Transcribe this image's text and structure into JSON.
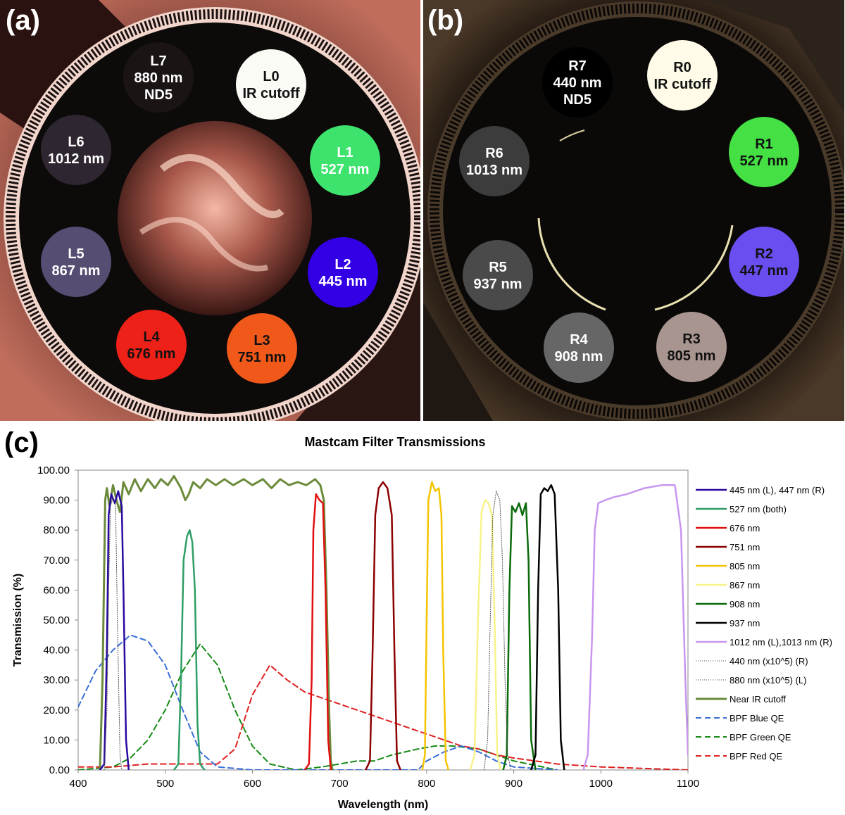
{
  "panel_a": {
    "label": "(a)",
    "filters": [
      {
        "id": "L0",
        "line1": "L0",
        "line2": "IR cutoff",
        "line3": "",
        "color": "#fbfbf6",
        "text": "#111111"
      },
      {
        "id": "L1",
        "line1": "L1",
        "line2": "527 nm",
        "line3": "",
        "color": "#3ee36e",
        "text": "#ffffff"
      },
      {
        "id": "L2",
        "line1": "L2",
        "line2": "445 nm",
        "line3": "",
        "color": "#3300e6",
        "text": "#ffffff"
      },
      {
        "id": "L3",
        "line1": "L3",
        "line2": "751 nm",
        "line3": "",
        "color": "#f0591a",
        "text": "#111111"
      },
      {
        "id": "L4",
        "line1": "L4",
        "line2": "676 nm",
        "line3": "",
        "color": "#ee2118",
        "text": "#111111"
      },
      {
        "id": "L5",
        "line1": "L5",
        "line2": "867 nm",
        "line3": "",
        "color": "#564d73",
        "text": "#ffffff"
      },
      {
        "id": "L6",
        "line1": "L6",
        "line2": "1012 nm",
        "line3": "",
        "color": "#2e2630",
        "text": "#ffffff"
      },
      {
        "id": "L7",
        "line1": "L7",
        "line2": "880 nm",
        "line3": "ND5",
        "color": "#1b1414",
        "text": "#ffffff"
      }
    ]
  },
  "panel_b": {
    "label": "(b)",
    "filters": [
      {
        "id": "R0",
        "line1": "R0",
        "line2": "IR cutoff",
        "line3": "",
        "color": "#fffbe8",
        "text": "#111111"
      },
      {
        "id": "R1",
        "line1": "R1",
        "line2": "527 nm",
        "line3": "",
        "color": "#44e044",
        "text": "#111111"
      },
      {
        "id": "R2",
        "line1": "R2",
        "line2": "447 nm",
        "line3": "",
        "color": "#6a4ef0",
        "text": "#111111"
      },
      {
        "id": "R3",
        "line1": "R3",
        "line2": "805 nm",
        "line3": "",
        "color": "#a99590",
        "text": "#111111"
      },
      {
        "id": "R4",
        "line1": "R4",
        "line2": "908 nm",
        "line3": "",
        "color": "#666666",
        "text": "#ffffff"
      },
      {
        "id": "R5",
        "line1": "R5",
        "line2": "937 nm",
        "line3": "",
        "color": "#4a4a4a",
        "text": "#ffffff"
      },
      {
        "id": "R6",
        "line1": "R6",
        "line2": "1013 nm",
        "line3": "",
        "color": "#3c3c3c",
        "text": "#ffffff"
      },
      {
        "id": "R7",
        "line1": "R7",
        "line2": "440 nm",
        "line3": "ND5",
        "color": "#000000",
        "text": "#ffffff"
      }
    ]
  },
  "panel_c_label": "(c)",
  "chart_data": {
    "type": "line",
    "title": "Mastcam Filter Transmissions",
    "xlabel": "Wavelength (nm)",
    "ylabel": "Transmission (%)",
    "xlim": [
      400,
      1100
    ],
    "ylim": [
      0,
      100
    ],
    "xticks": [
      "400",
      "500",
      "600",
      "700",
      "800",
      "900",
      "1000",
      "1100"
    ],
    "yticks": [
      "0.00",
      "10.00",
      "20.00",
      "30.00",
      "40.00",
      "50.00",
      "60.00",
      "70.00",
      "80.00",
      "90.00",
      "100.00"
    ],
    "series": [
      {
        "name": "445 nm (L), 447 nm (R)",
        "color": "#2a0aa0",
        "dash": "",
        "width": 2.5,
        "points": [
          [
            425,
            0
          ],
          [
            430,
            2
          ],
          [
            433,
            40
          ],
          [
            435,
            85
          ],
          [
            438,
            92
          ],
          [
            442,
            89
          ],
          [
            446,
            93
          ],
          [
            450,
            88
          ],
          [
            452,
            60
          ],
          [
            455,
            10
          ],
          [
            458,
            0
          ]
        ]
      },
      {
        "name": "527 nm (both)",
        "color": "#2f9e66",
        "dash": "",
        "width": 2.5,
        "points": [
          [
            510,
            0
          ],
          [
            515,
            2
          ],
          [
            518,
            30
          ],
          [
            521,
            70
          ],
          [
            525,
            78
          ],
          [
            528,
            80
          ],
          [
            531,
            76
          ],
          [
            534,
            60
          ],
          [
            537,
            15
          ],
          [
            540,
            2
          ],
          [
            545,
            0
          ]
        ]
      },
      {
        "name": "676 nm",
        "color": "#e01010",
        "dash": "",
        "width": 2.5,
        "points": [
          [
            660,
            0
          ],
          [
            665,
            2
          ],
          [
            668,
            30
          ],
          [
            670,
            80
          ],
          [
            673,
            92
          ],
          [
            677,
            90
          ],
          [
            681,
            89
          ],
          [
            684,
            60
          ],
          [
            687,
            10
          ],
          [
            690,
            0
          ]
        ]
      },
      {
        "name": "751 nm",
        "color": "#8b0000",
        "dash": "",
        "width": 2.5,
        "points": [
          [
            730,
            0
          ],
          [
            735,
            3
          ],
          [
            738,
            40
          ],
          [
            741,
            85
          ],
          [
            745,
            94
          ],
          [
            750,
            96
          ],
          [
            755,
            94
          ],
          [
            760,
            85
          ],
          [
            763,
            40
          ],
          [
            766,
            3
          ],
          [
            770,
            0
          ]
        ]
      },
      {
        "name": "805 nm",
        "color": "#f5c400",
        "dash": "",
        "width": 2.5,
        "points": [
          [
            795,
            0
          ],
          [
            798,
            5
          ],
          [
            800,
            50
          ],
          [
            802,
            90
          ],
          [
            806,
            96
          ],
          [
            810,
            93
          ],
          [
            814,
            94
          ],
          [
            817,
            85
          ],
          [
            819,
            40
          ],
          [
            822,
            3
          ],
          [
            825,
            0
          ]
        ]
      },
      {
        "name": "867 nm",
        "color": "#f7f38a",
        "dash": "",
        "width": 2.5,
        "points": [
          [
            850,
            0
          ],
          [
            855,
            5
          ],
          [
            859,
            50
          ],
          [
            863,
            86
          ],
          [
            867,
            90
          ],
          [
            871,
            89
          ],
          [
            875,
            85
          ],
          [
            878,
            50
          ],
          [
            881,
            5
          ],
          [
            885,
            0
          ]
        ]
      },
      {
        "name": "908 nm",
        "color": "#0b6b0b",
        "dash": "",
        "width": 2.5,
        "points": [
          [
            888,
            0
          ],
          [
            892,
            5
          ],
          [
            895,
            60
          ],
          [
            898,
            88
          ],
          [
            902,
            86
          ],
          [
            906,
            89
          ],
          [
            910,
            85
          ],
          [
            914,
            89
          ],
          [
            917,
            70
          ],
          [
            920,
            10
          ],
          [
            925,
            0
          ]
        ]
      },
      {
        "name": "937 nm",
        "color": "#000000",
        "dash": "",
        "width": 2.5,
        "points": [
          [
            920,
            0
          ],
          [
            925,
            5
          ],
          [
            928,
            60
          ],
          [
            931,
            92
          ],
          [
            935,
            94
          ],
          [
            939,
            93
          ],
          [
            943,
            95
          ],
          [
            947,
            92
          ],
          [
            951,
            60
          ],
          [
            954,
            10
          ],
          [
            958,
            0
          ]
        ]
      },
      {
        "name": "1012 nm (L),1013 nm (R)",
        "color": "#c896f0",
        "dash": "",
        "width": 2.5,
        "points": [
          [
            980,
            0
          ],
          [
            985,
            5
          ],
          [
            990,
            45
          ],
          [
            993,
            80
          ],
          [
            997,
            89
          ],
          [
            1005,
            90
          ],
          [
            1015,
            91
          ],
          [
            1030,
            92
          ],
          [
            1050,
            94
          ],
          [
            1070,
            95
          ],
          [
            1085,
            95
          ],
          [
            1092,
            80
          ],
          [
            1097,
            30
          ],
          [
            1100,
            5
          ]
        ]
      },
      {
        "name": "440 nm (x10^5) (R)",
        "color": "#444444",
        "dash": "1,2",
        "width": 1,
        "points": [
          [
            430,
            0
          ],
          [
            433,
            20
          ],
          [
            435,
            60
          ],
          [
            437,
            88
          ],
          [
            440,
            91
          ],
          [
            443,
            88
          ],
          [
            445,
            50
          ],
          [
            448,
            5
          ],
          [
            450,
            0
          ]
        ]
      },
      {
        "name": "880 nm (x10^5) (L)",
        "color": "#444444",
        "dash": "1,2",
        "width": 1,
        "points": [
          [
            866,
            0
          ],
          [
            870,
            10
          ],
          [
            873,
            50
          ],
          [
            876,
            85
          ],
          [
            880,
            93
          ],
          [
            884,
            90
          ],
          [
            887,
            70
          ],
          [
            890,
            30
          ],
          [
            893,
            5
          ],
          [
            897,
            0
          ]
        ]
      },
      {
        "name": "Near IR cutoff",
        "color": "#6b8a3a",
        "dash": "",
        "width": 3,
        "points": [
          [
            425,
            0
          ],
          [
            428,
            30
          ],
          [
            431,
            90
          ],
          [
            433,
            94
          ],
          [
            436,
            88
          ],
          [
            440,
            95
          ],
          [
            444,
            90
          ],
          [
            448,
            86
          ],
          [
            452,
            96
          ],
          [
            458,
            92
          ],
          [
            465,
            97
          ],
          [
            472,
            93
          ],
          [
            480,
            97
          ],
          [
            488,
            94
          ],
          [
            495,
            97
          ],
          [
            503,
            95
          ],
          [
            510,
            98
          ],
          [
            518,
            94
          ],
          [
            523,
            90
          ],
          [
            527,
            92
          ],
          [
            532,
            96
          ],
          [
            540,
            94
          ],
          [
            548,
            97
          ],
          [
            558,
            95
          ],
          [
            568,
            97
          ],
          [
            578,
            95
          ],
          [
            590,
            97
          ],
          [
            600,
            95
          ],
          [
            612,
            97
          ],
          [
            622,
            94
          ],
          [
            632,
            97
          ],
          [
            642,
            95
          ],
          [
            652,
            96
          ],
          [
            662,
            95
          ],
          [
            672,
            97
          ],
          [
            678,
            95
          ],
          [
            682,
            90
          ],
          [
            685,
            60
          ],
          [
            688,
            20
          ],
          [
            690,
            3
          ],
          [
            692,
            0
          ]
        ]
      },
      {
        "name": "BPF Blue QE",
        "color": "#3a6fd8",
        "dash": "8,5",
        "width": 2,
        "points": [
          [
            400,
            21
          ],
          [
            420,
            33
          ],
          [
            440,
            40
          ],
          [
            460,
            45
          ],
          [
            480,
            43
          ],
          [
            500,
            35
          ],
          [
            520,
            20
          ],
          [
            540,
            6
          ],
          [
            560,
            1
          ],
          [
            600,
            0
          ],
          [
            650,
            0
          ],
          [
            700,
            0
          ],
          [
            760,
            0
          ],
          [
            790,
            0
          ],
          [
            800,
            3
          ],
          [
            820,
            6
          ],
          [
            840,
            8
          ],
          [
            860,
            6
          ],
          [
            880,
            3
          ],
          [
            900,
            1
          ],
          [
            950,
            0
          ]
        ]
      },
      {
        "name": "BPF Green QE",
        "color": "#168a16",
        "dash": "8,5",
        "width": 2,
        "points": [
          [
            400,
            0
          ],
          [
            440,
            1
          ],
          [
            460,
            4
          ],
          [
            480,
            10
          ],
          [
            500,
            20
          ],
          [
            520,
            33
          ],
          [
            540,
            42
          ],
          [
            560,
            35
          ],
          [
            580,
            20
          ],
          [
            600,
            8
          ],
          [
            620,
            2
          ],
          [
            650,
            0
          ],
          [
            680,
            1
          ],
          [
            700,
            2
          ],
          [
            720,
            3
          ],
          [
            740,
            3
          ],
          [
            760,
            5
          ],
          [
            790,
            7
          ],
          [
            810,
            8
          ],
          [
            830,
            8
          ],
          [
            860,
            7
          ],
          [
            880,
            5
          ],
          [
            900,
            3
          ],
          [
            950,
            0
          ]
        ]
      },
      {
        "name": "BPF Red QE",
        "color": "#e02020",
        "dash": "8,5",
        "width": 2,
        "points": [
          [
            400,
            1
          ],
          [
            440,
            1
          ],
          [
            480,
            2
          ],
          [
            520,
            2
          ],
          [
            560,
            2
          ],
          [
            580,
            7
          ],
          [
            600,
            25
          ],
          [
            620,
            35
          ],
          [
            640,
            30
          ],
          [
            660,
            26
          ],
          [
            680,
            24
          ],
          [
            700,
            22
          ],
          [
            720,
            20
          ],
          [
            740,
            18
          ],
          [
            760,
            16
          ],
          [
            780,
            14
          ],
          [
            800,
            12
          ],
          [
            820,
            10
          ],
          [
            840,
            8
          ],
          [
            860,
            7
          ],
          [
            880,
            5
          ],
          [
            900,
            4
          ],
          [
            950,
            2
          ],
          [
            1000,
            1
          ],
          [
            1100,
            0
          ]
        ]
      }
    ]
  }
}
